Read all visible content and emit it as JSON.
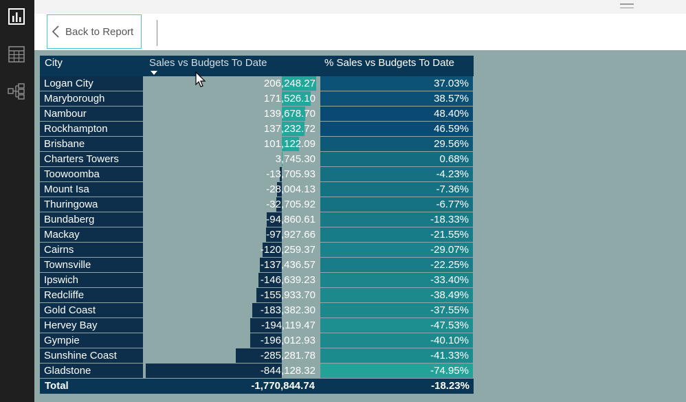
{
  "nav": {
    "back_label": "Back to Report"
  },
  "matrix": {
    "columns": [
      "City",
      "Sales vs Budgets To Date",
      "% Sales vs Budgets To Date"
    ],
    "rows": [
      {
        "city": "Logan City",
        "sales": "206,248.27",
        "sales_value": 206248.27,
        "pct": "37.03%",
        "pct_value": 37.03
      },
      {
        "city": "Maryborough",
        "sales": "171,526.10",
        "sales_value": 171526.1,
        "pct": "38.57%",
        "pct_value": 38.57
      },
      {
        "city": "Nambour",
        "sales": "139,678.70",
        "sales_value": 139678.7,
        "pct": "48.40%",
        "pct_value": 48.4
      },
      {
        "city": "Rockhampton",
        "sales": "137,232.72",
        "sales_value": 137232.72,
        "pct": "46.59%",
        "pct_value": 46.59
      },
      {
        "city": "Brisbane",
        "sales": "101,122.09",
        "sales_value": 101122.09,
        "pct": "29.56%",
        "pct_value": 29.56
      },
      {
        "city": "Charters Towers",
        "sales": "3,745.30",
        "sales_value": 3745.3,
        "pct": "0.68%",
        "pct_value": 0.68
      },
      {
        "city": "Toowoomba",
        "sales": "-13,705.93",
        "sales_value": -13705.93,
        "pct": "-4.23%",
        "pct_value": -4.23
      },
      {
        "city": "Mount Isa",
        "sales": "-28,004.13",
        "sales_value": -28004.13,
        "pct": "-7.36%",
        "pct_value": -7.36
      },
      {
        "city": "Thuringowa",
        "sales": "-32,705.92",
        "sales_value": -32705.92,
        "pct": "-6.77%",
        "pct_value": -6.77
      },
      {
        "city": "Bundaberg",
        "sales": "-94,860.61",
        "sales_value": -94860.61,
        "pct": "-18.33%",
        "pct_value": -18.33
      },
      {
        "city": "Mackay",
        "sales": "-97,927.66",
        "sales_value": -97927.66,
        "pct": "-21.55%",
        "pct_value": -21.55
      },
      {
        "city": "Cairns",
        "sales": "-120,259.37",
        "sales_value": -120259.37,
        "pct": "-29.07%",
        "pct_value": -29.07
      },
      {
        "city": "Townsville",
        "sales": "-137,436.57",
        "sales_value": -137436.57,
        "pct": "-22.25%",
        "pct_value": -22.25
      },
      {
        "city": "Ipswich",
        "sales": "-146,639.23",
        "sales_value": -146639.23,
        "pct": "-33.40%",
        "pct_value": -33.4
      },
      {
        "city": "Redcliffe",
        "sales": "-155,933.70",
        "sales_value": -155933.7,
        "pct": "-38.49%",
        "pct_value": -38.49
      },
      {
        "city": "Gold Coast",
        "sales": "-183,382.30",
        "sales_value": -183382.3,
        "pct": "-37.55%",
        "pct_value": -37.55
      },
      {
        "city": "Hervey Bay",
        "sales": "-194,119.47",
        "sales_value": -194119.47,
        "pct": "-47.53%",
        "pct_value": -47.53
      },
      {
        "city": "Gympie",
        "sales": "-196,012.93",
        "sales_value": -196012.93,
        "pct": "-40.10%",
        "pct_value": -40.1
      },
      {
        "city": "Sunshine Coast",
        "sales": "-285,281.78",
        "sales_value": -285281.78,
        "pct": "-41.33%",
        "pct_value": -41.33
      },
      {
        "city": "Gladstone",
        "sales": "-844,128.32",
        "sales_value": -844128.32,
        "pct": "-74.95%",
        "pct_value": -74.95
      }
    ],
    "total": {
      "label": "Total",
      "sales": "-1,770,844.74",
      "pct": "-18.23%"
    }
  },
  "colors": {
    "header_bg": "#0a3655",
    "city_bg": "#0d2f4b",
    "pos_bar": "#22a79a",
    "neg_bar": "#0d2f4b",
    "pct_high": "#0a4a72",
    "pct_low": "#23a398",
    "canvas": "#8fa8a8"
  }
}
